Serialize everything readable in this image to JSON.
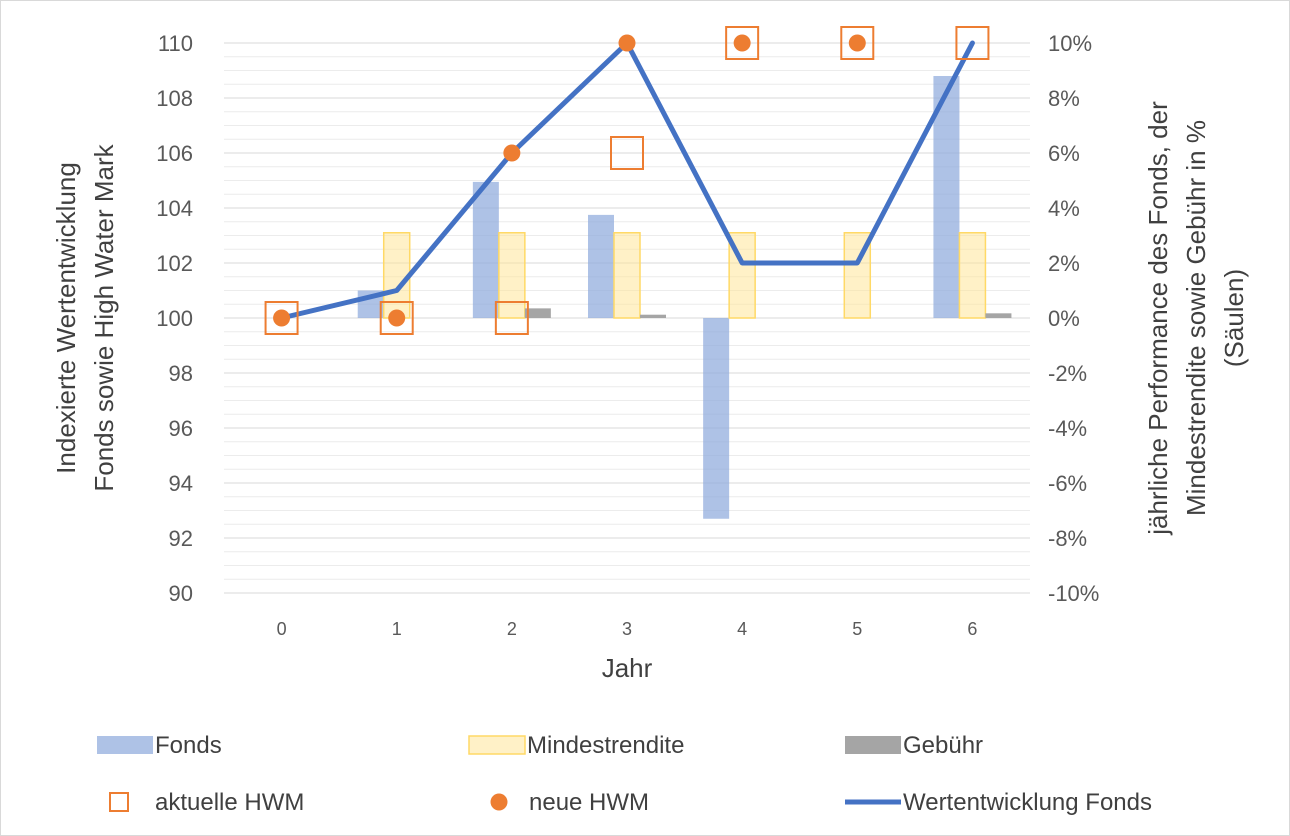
{
  "chart_data": {
    "type": "bar",
    "x_categories": [
      "0",
      "1",
      "2",
      "3",
      "4",
      "5",
      "6"
    ],
    "xlabel": "Jahr",
    "ylabel_left": [
      "Indexierte Wertentwicklung",
      "Fonds sowie High Water Mark"
    ],
    "ylabel_right": [
      "jährliche Performance des Fonds, der",
      "Mindestrendite sowie Gebühr in %",
      "(Säulen)"
    ],
    "y_left": {
      "range": [
        90,
        110
      ],
      "ticks": [
        "90",
        "92",
        "94",
        "96",
        "98",
        "100",
        "102",
        "104",
        "106",
        "108",
        "110"
      ]
    },
    "y_right": {
      "range": [
        -10,
        10
      ],
      "ticks": [
        "-10%",
        "-8%",
        "-6%",
        "-4%",
        "-2%",
        "0%",
        "2%",
        "4%",
        "6%",
        "8%",
        "10%"
      ]
    },
    "grid": true,
    "legend_position": "bottom",
    "bar_series": [
      {
        "name": "Fonds",
        "axis": "right",
        "color": "#8FAADC",
        "values": [
          0,
          1.0,
          4.95,
          3.75,
          -7.3,
          0,
          8.8
        ]
      },
      {
        "name": "Mindestrendite",
        "axis": "right",
        "color": "#FFE699",
        "stroke": "#FFD966",
        "values": [
          0,
          3.1,
          3.1,
          3.1,
          3.1,
          3.1,
          3.1
        ]
      },
      {
        "name": "Gebühr",
        "axis": "right",
        "color": "#A5A5A5",
        "values": [
          0,
          0,
          0.35,
          0.12,
          0,
          0,
          0.17
        ]
      }
    ],
    "marker_series": [
      {
        "name": "aktuelle HWM",
        "axis": "left",
        "marker": "open-square",
        "color": "#ED7D31",
        "values": [
          100,
          100,
          100,
          106,
          110,
          110,
          110
        ]
      },
      {
        "name": "neue HWM",
        "axis": "left",
        "marker": "filled-circle",
        "color": "#ED7D31",
        "values": [
          100,
          100,
          106,
          110,
          110,
          110,
          null
        ]
      }
    ],
    "line_series": [
      {
        "name": "Wertentwicklung Fonds",
        "axis": "left",
        "color": "#4472C4",
        "values": [
          100,
          101,
          106,
          110,
          102,
          102,
          110
        ]
      }
    ]
  }
}
